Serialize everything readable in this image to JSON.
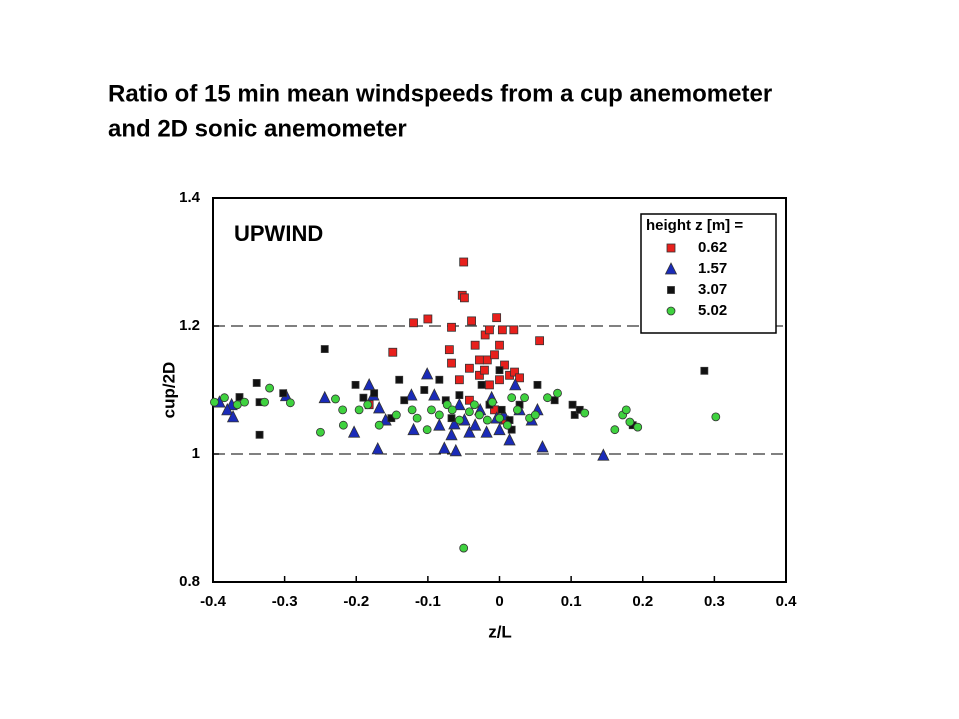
{
  "chart_data": {
    "type": "scatter",
    "title": [
      "Ratio of 15 min mean windspeeds from a cup anemometer",
      "and 2D sonic anemometer"
    ],
    "annotation": "UPWIND",
    "x_label": "z/L",
    "y_label": "cup/2D",
    "legend_title": "height z [m] =",
    "legend_position": "top-right",
    "xlim": [
      -0.4,
      0.4
    ],
    "xticks": [
      -0.4,
      -0.3,
      -0.2,
      -0.1,
      0,
      0.1,
      0.2,
      0.3,
      0.4
    ],
    "ylim": [
      0.8,
      1.4
    ],
    "yticks": [
      0.8,
      1,
      1.2,
      1.4
    ],
    "dashed_grid": [
      1,
      1.2
    ],
    "series": [
      {
        "name": "0.62",
        "color": "#e8201c",
        "marker": "square",
        "x": [
          -0.05,
          -0.052,
          -0.049,
          -0.12,
          -0.1,
          -0.067,
          -0.039,
          -0.004,
          -0.149,
          0.056,
          -0.07,
          -0.067,
          -0.034,
          -0.02,
          -0.014,
          0.004,
          0.02,
          -0.028,
          -0.017,
          -0.007,
          0,
          0.007,
          -0.056,
          -0.028,
          0.014,
          0.021,
          -0.182,
          -0.042,
          -0.014,
          0,
          0.028,
          -0.007,
          0.007,
          -0.021,
          -0.042
        ],
        "values": [
          1.3,
          1.248,
          1.244,
          1.205,
          1.211,
          1.198,
          1.208,
          1.213,
          1.159,
          1.177,
          1.163,
          1.142,
          1.17,
          1.186,
          1.194,
          1.194,
          1.194,
          1.147,
          1.147,
          1.155,
          1.17,
          1.139,
          1.116,
          1.123,
          1.123,
          1.128,
          1.077,
          1.084,
          1.108,
          1.116,
          1.119,
          1.069,
          1.053,
          1.131,
          1.134
        ]
      },
      {
        "name": "1.57",
        "color": "#1a2bb8",
        "marker": "triangle",
        "x": [
          -0.391,
          -0.374,
          -0.38,
          -0.372,
          -0.298,
          -0.244,
          -0.203,
          -0.182,
          -0.176,
          -0.168,
          -0.17,
          -0.159,
          -0.123,
          -0.12,
          -0.101,
          -0.091,
          -0.084,
          -0.077,
          -0.067,
          -0.061,
          -0.056,
          -0.049,
          -0.042,
          -0.034,
          -0.027,
          -0.018,
          -0.011,
          -0.004,
          0,
          0.006,
          0.014,
          0.022,
          0.028,
          0.045,
          0.053,
          0.06,
          0.145,
          -0.063
        ],
        "values": [
          1.081,
          1.077,
          1.069,
          1.058,
          1.091,
          1.088,
          1.034,
          1.108,
          1.092,
          1.072,
          1.008,
          1.053,
          1.092,
          1.038,
          1.125,
          1.092,
          1.045,
          1.009,
          1.03,
          1.005,
          1.077,
          1.053,
          1.034,
          1.045,
          1.069,
          1.034,
          1.088,
          1.056,
          1.038,
          1.061,
          1.022,
          1.108,
          1.069,
          1.053,
          1.069,
          1.011,
          0.998,
          1.047
        ]
      },
      {
        "name": "3.07",
        "color": "#111111",
        "marker": "smallsquare",
        "x": [
          -0.339,
          -0.335,
          -0.363,
          -0.335,
          -0.302,
          -0.244,
          -0.201,
          -0.19,
          -0.175,
          -0.14,
          -0.133,
          -0.105,
          -0.084,
          -0.075,
          -0.067,
          -0.056,
          -0.025,
          -0.014,
          0,
          0.003,
          0.014,
          0.017,
          0.028,
          0.053,
          0.077,
          0.102,
          0.105,
          0.112,
          0.186,
          0.286,
          -0.151
        ],
        "values": [
          1.111,
          1.03,
          1.089,
          1.081,
          1.095,
          1.164,
          1.108,
          1.088,
          1.095,
          1.116,
          1.084,
          1.1,
          1.116,
          1.084,
          1.056,
          1.092,
          1.108,
          1.077,
          1.131,
          1.069,
          1.053,
          1.038,
          1.077,
          1.108,
          1.084,
          1.077,
          1.061,
          1.069,
          1.045,
          1.13,
          1.056
        ]
      },
      {
        "name": "5.02",
        "color": "#3fd23f",
        "marker": "circle",
        "x": [
          -0.398,
          -0.384,
          -0.366,
          -0.356,
          -0.321,
          -0.328,
          -0.292,
          -0.25,
          -0.229,
          -0.219,
          -0.218,
          -0.196,
          -0.184,
          -0.168,
          -0.144,
          -0.122,
          -0.115,
          -0.101,
          -0.095,
          -0.084,
          -0.073,
          -0.066,
          -0.056,
          -0.05,
          -0.042,
          -0.035,
          -0.028,
          -0.017,
          -0.01,
          0,
          0.011,
          0.017,
          0.025,
          0.035,
          0.042,
          0.05,
          0.067,
          0.081,
          0.119,
          0.161,
          0.172,
          0.177,
          0.182,
          0.193,
          0.302
        ],
        "values": [
          1.081,
          1.088,
          1.077,
          1.081,
          1.103,
          1.081,
          1.08,
          1.034,
          1.086,
          1.069,
          1.045,
          1.069,
          1.077,
          1.045,
          1.061,
          1.069,
          1.056,
          1.038,
          1.069,
          1.061,
          1.077,
          1.069,
          1.053,
          0.853,
          1.066,
          1.077,
          1.061,
          1.053,
          1.081,
          1.056,
          1.045,
          1.088,
          1.069,
          1.088,
          1.056,
          1.061,
          1.088,
          1.095,
          1.064,
          1.038,
          1.061,
          1.069,
          1.05,
          1.042,
          1.058
        ]
      }
    ]
  }
}
